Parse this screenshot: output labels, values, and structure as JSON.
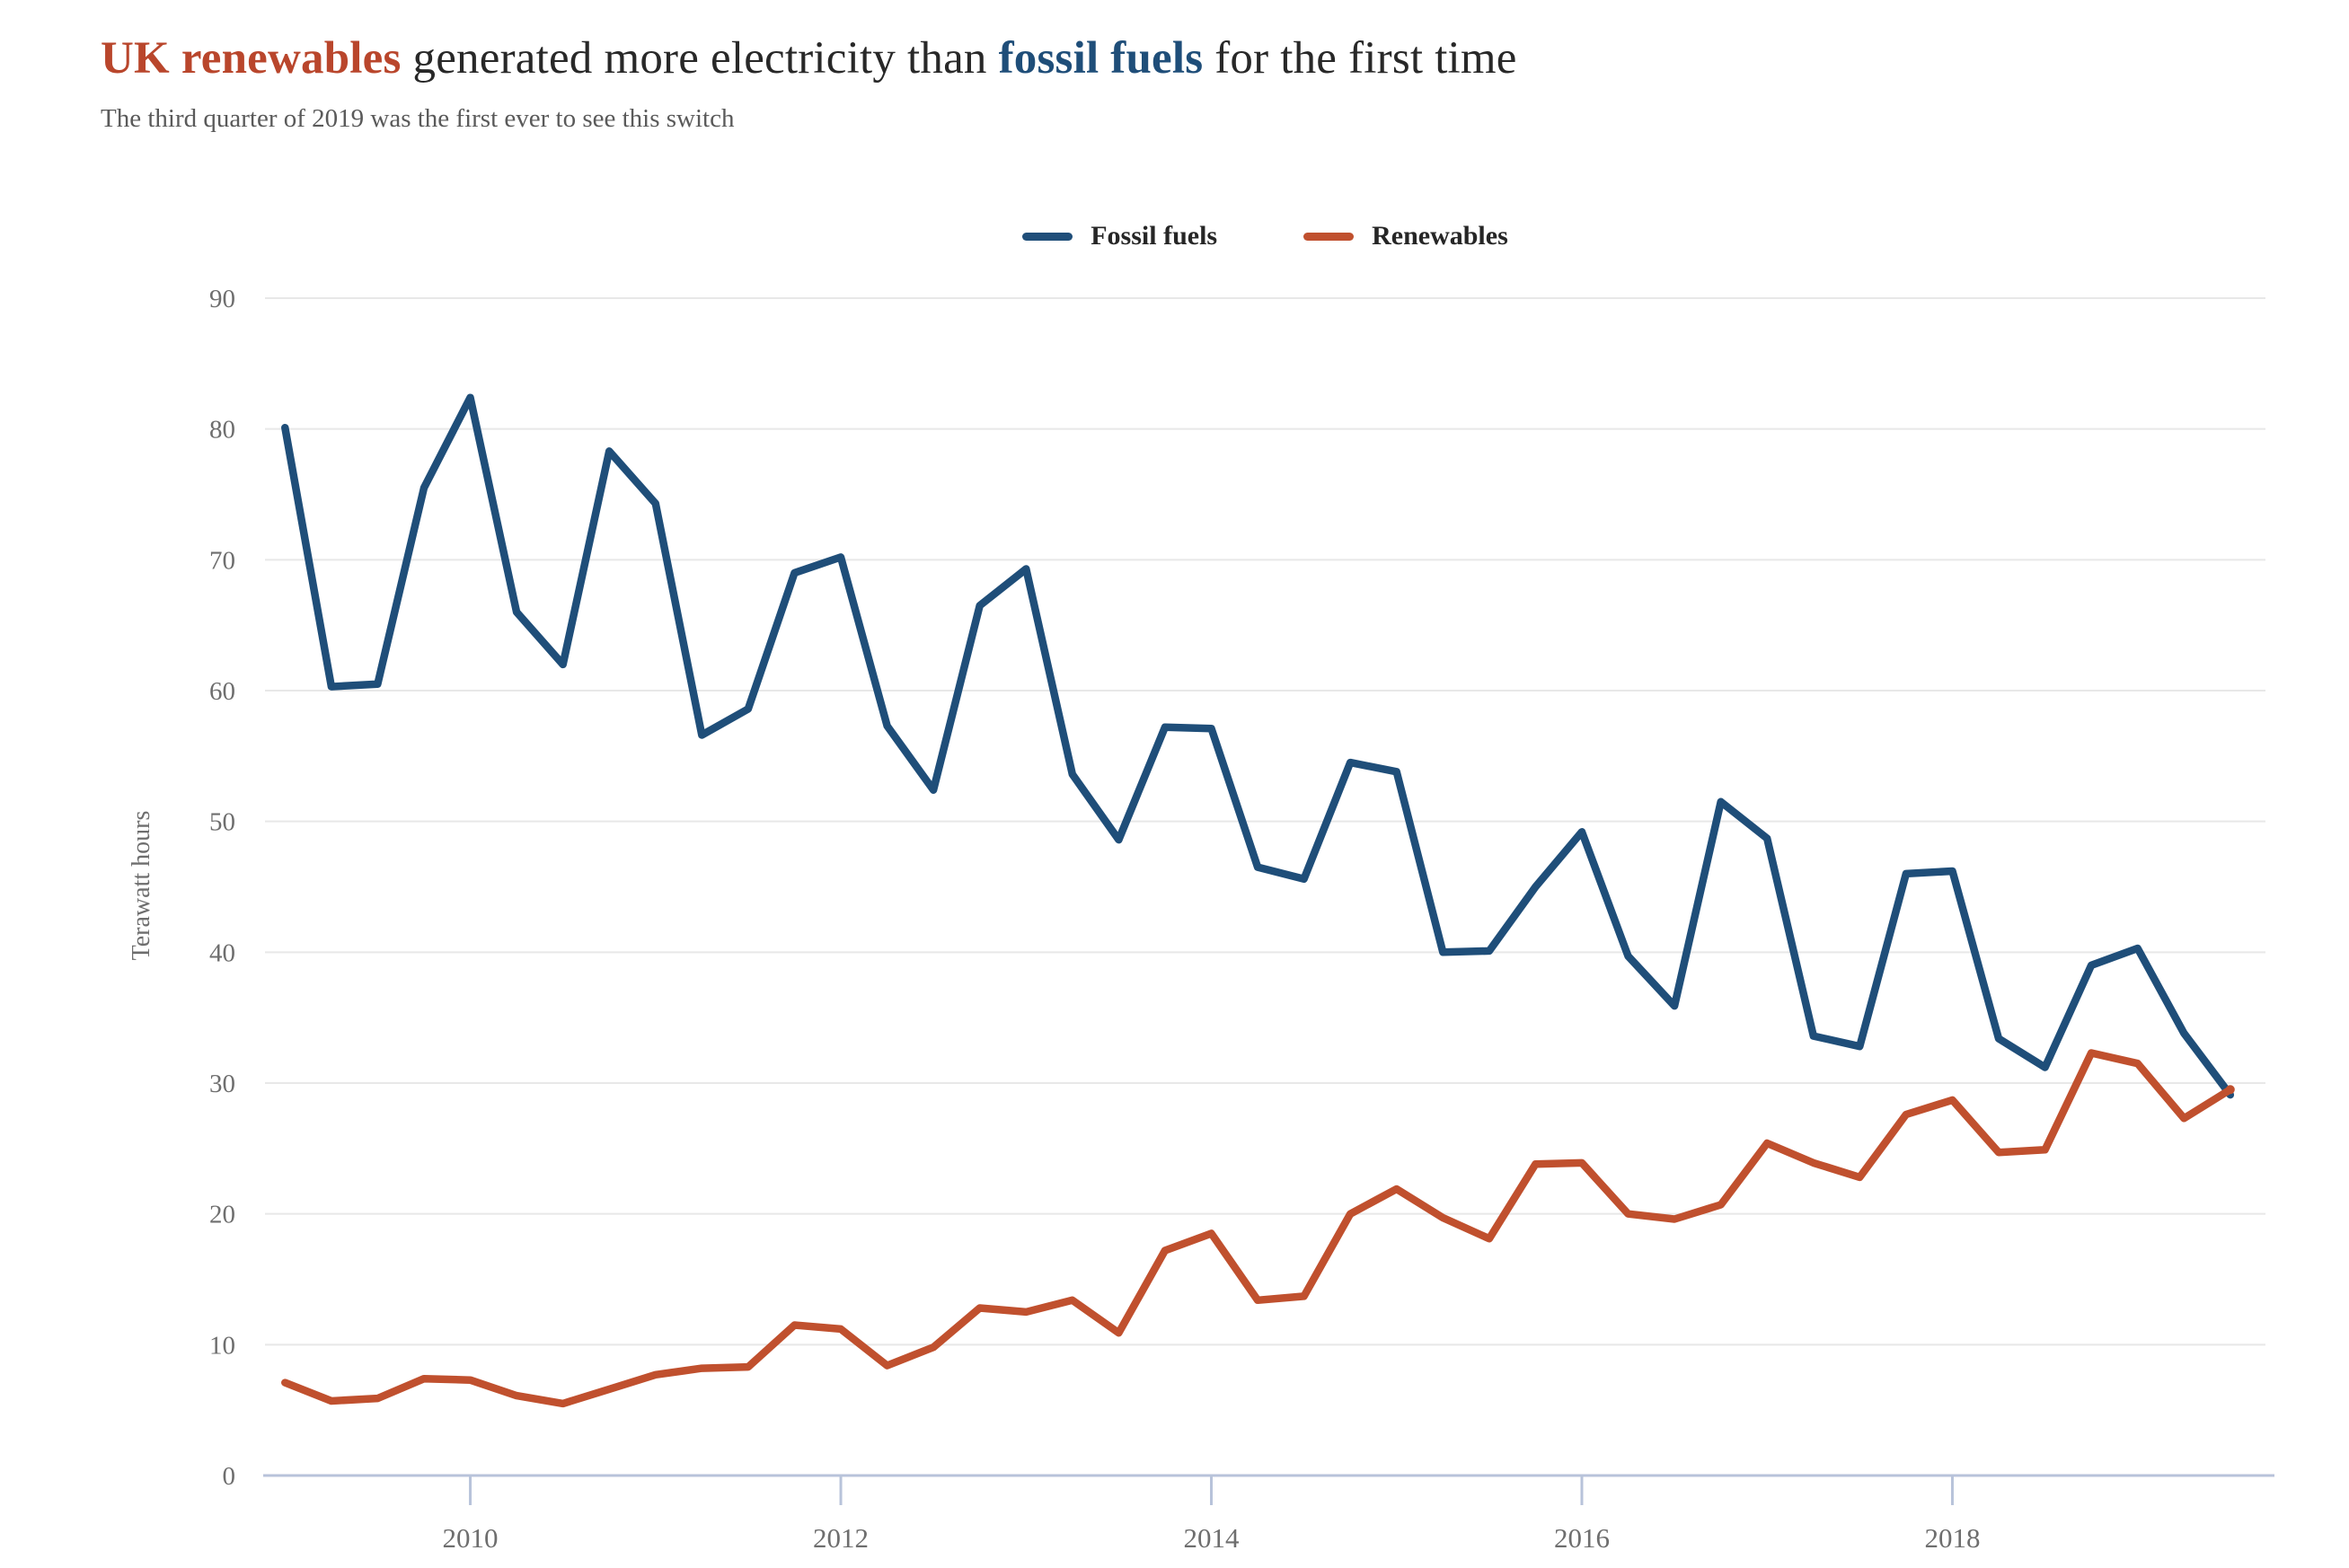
{
  "header": {
    "title_parts": [
      {
        "text": "UK renewables",
        "color": "#b9462c",
        "bold": true
      },
      {
        "text": " generated more electricity than ",
        "color": "#282828",
        "bold": false
      },
      {
        "text": "fossil fuels",
        "color": "#1f4e79",
        "bold": true
      },
      {
        "text": " for the first time",
        "color": "#282828",
        "bold": false
      }
    ],
    "subtitle": "The third quarter of 2019 was the first ever to see this switch"
  },
  "chart_data": {
    "type": "line",
    "title": "UK renewables generated more electricity than fossil fuels for the first time",
    "subtitle": "The third quarter of 2019 was the first ever to see this switch",
    "ylabel": "Terawatt hours",
    "xlabel": "",
    "ylim": [
      0,
      90
    ],
    "yticks": [
      0,
      10,
      20,
      30,
      40,
      50,
      60,
      70,
      80,
      90
    ],
    "xticks": [
      2010,
      2012,
      2014,
      2016,
      2018
    ],
    "grid": true,
    "legend_position": "top-center",
    "gridline_color": "#e8e8e8",
    "axis_color": "#b8c3da",
    "tick_label_color": "#6e6e6e",
    "quarters": [
      "2009 Q1",
      "2009 Q2",
      "2009 Q3",
      "2009 Q4",
      "2010 Q1",
      "2010 Q2",
      "2010 Q3",
      "2010 Q4",
      "2011 Q1",
      "2011 Q2",
      "2011 Q3",
      "2011 Q4",
      "2012 Q1",
      "2012 Q2",
      "2012 Q3",
      "2012 Q4",
      "2013 Q1",
      "2013 Q2",
      "2013 Q3",
      "2013 Q4",
      "2014 Q1",
      "2014 Q2",
      "2014 Q3",
      "2014 Q4",
      "2015 Q1",
      "2015 Q2",
      "2015 Q3",
      "2015 Q4",
      "2016 Q1",
      "2016 Q2",
      "2016 Q3",
      "2016 Q4",
      "2017 Q1",
      "2017 Q2",
      "2017 Q3",
      "2017 Q4",
      "2018 Q1",
      "2018 Q2",
      "2018 Q3",
      "2018 Q4",
      "2019 Q1",
      "2019 Q2",
      "2019 Q3"
    ],
    "series": [
      {
        "name": "Fossil fuels",
        "color": "#1f4e79",
        "values": [
          80.1,
          60.3,
          60.5,
          75.5,
          82.4,
          66.0,
          62.0,
          78.3,
          74.3,
          56.6,
          58.6,
          69.0,
          70.2,
          57.3,
          52.4,
          66.5,
          69.3,
          53.6,
          48.6,
          57.2,
          57.1,
          46.5,
          45.6,
          54.5,
          53.8,
          40.0,
          40.1,
          45.0,
          49.2,
          39.7,
          35.9,
          51.5,
          48.7,
          33.6,
          32.8,
          46.0,
          46.2,
          33.4,
          31.2,
          39.0,
          40.3,
          33.8,
          29.1
        ]
      },
      {
        "name": "Renewables",
        "color": "#c0502e",
        "values": [
          7.1,
          5.7,
          5.9,
          7.4,
          7.3,
          6.1,
          5.5,
          6.6,
          7.7,
          8.2,
          8.3,
          11.5,
          11.2,
          8.4,
          9.8,
          12.8,
          12.5,
          13.4,
          10.9,
          17.2,
          18.5,
          13.4,
          13.7,
          20.0,
          21.9,
          19.7,
          18.1,
          23.8,
          23.9,
          20.0,
          19.6,
          20.7,
          25.4,
          23.9,
          22.8,
          27.6,
          28.7,
          24.7,
          24.9,
          32.3,
          31.5,
          27.3,
          29.5
        ]
      }
    ]
  }
}
